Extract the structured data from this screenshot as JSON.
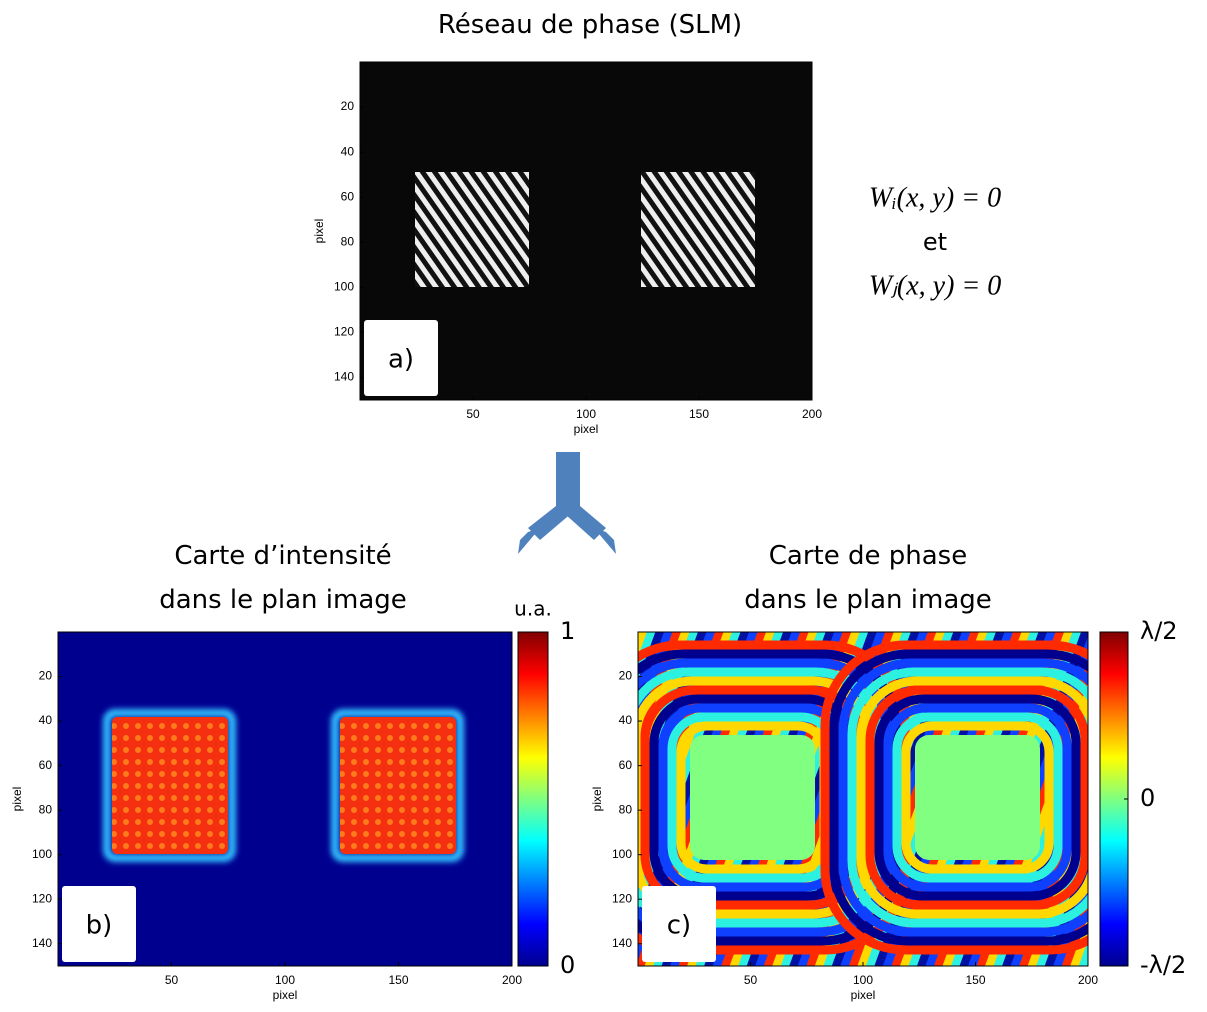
{
  "chart_data": [
    {
      "type": "image",
      "title": "Réseau de phase (SLM)",
      "xlabel": "pixel",
      "ylabel": "pixel",
      "panel_label": "a)",
      "xlim": [
        0,
        200
      ],
      "ylim": [
        150,
        0
      ],
      "xticks": [
        50,
        100,
        150,
        200
      ],
      "yticks": [
        20,
        40,
        60,
        80,
        100,
        120,
        140
      ]
    },
    {
      "type": "image",
      "title": "Carte d’intensité\ndans le plan image",
      "xlabel": "pixel",
      "ylabel": "pixel",
      "panel_label": "b)",
      "xlim": [
        0,
        200
      ],
      "ylim": [
        150,
        0
      ],
      "xticks": [
        50,
        100,
        150,
        200
      ],
      "yticks": [
        20,
        40,
        60,
        80,
        100,
        120,
        140
      ],
      "colorbar": {
        "label": "u.a.",
        "lim": [
          0,
          1
        ],
        "ticks": [
          0,
          1
        ]
      }
    },
    {
      "type": "image",
      "title": "Carte de phase\ndans le plan image",
      "xlabel": "pixel",
      "ylabel": "pixel",
      "panel_label": "c)",
      "xlim": [
        0,
        200
      ],
      "ylim": [
        150,
        0
      ],
      "xticks": [
        50,
        100,
        150,
        200
      ],
      "yticks": [
        20,
        40,
        60,
        80,
        100,
        120,
        140
      ],
      "colorbar": {
        "lim": [
          -0.5,
          0.5
        ],
        "ticks": [
          {
            "value": -0.5,
            "label": "-λ/2"
          },
          0,
          {
            "value": 0.5,
            "label": "λ/2"
          }
        ]
      }
    }
  ],
  "equations": [
    "Wᵢ(x, y) = 0",
    "et",
    "Wⱼ(x, y) = 0"
  ]
}
